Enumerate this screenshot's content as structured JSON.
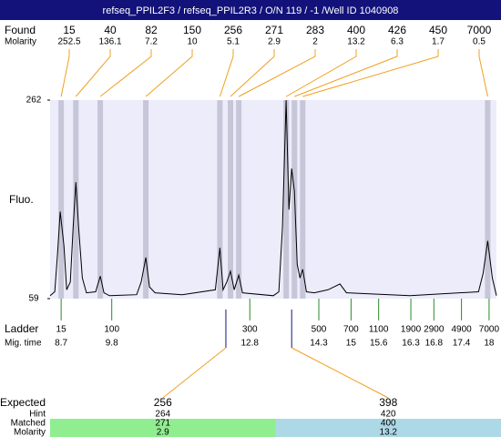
{
  "title": "refseq_PPIL2F3 / refseq_PPIL2R3 / O/N 119 / -1 /Well ID 1040908",
  "labels": {
    "found": "Found",
    "found_molarity": "Molarity",
    "fluo": "Fluo.",
    "ladder": "Ladder",
    "mig_time": "Mig. time",
    "expected": "Expected",
    "hint": "Hint",
    "matched": "Matched",
    "molarity": "Molarity"
  },
  "chart_data": {
    "type": "electropherogram",
    "ylim": [
      59,
      262
    ],
    "yticks": [
      59,
      262
    ],
    "xlim": [
      8.46,
      18.16
    ],
    "trace": {
      "x": [
        8.46,
        8.56,
        8.62,
        8.68,
        8.76,
        8.82,
        8.9,
        8.96,
        9.02,
        9.08,
        9.16,
        9.25,
        9.45,
        9.55,
        9.63,
        9.75,
        10.34,
        10.44,
        10.54,
        10.62,
        10.74,
        11.33,
        12.05,
        12.15,
        12.22,
        12.3,
        12.38,
        12.46,
        12.56,
        12.64,
        13.31,
        13.43,
        13.51,
        13.59,
        13.65,
        13.71,
        13.77,
        13.83,
        13.89,
        13.95,
        14.03,
        14.2,
        14.5,
        14.76,
        14.9,
        16.28,
        17.77,
        17.87,
        17.97,
        18.07,
        18.16
      ],
      "values": [
        62,
        66,
        104,
        148,
        113,
        68,
        76,
        132,
        178,
        132,
        80,
        65,
        66,
        82,
        65,
        62,
        63,
        76,
        101,
        71,
        65,
        63,
        68,
        111,
        68,
        76,
        87,
        68,
        83,
        65,
        62,
        66,
        132,
        262,
        150,
        192,
        169,
        94,
        80,
        89,
        66,
        65,
        68,
        74,
        65,
        62,
        66,
        85,
        118,
        80,
        62
      ]
    },
    "found": {
      "sizes": [
        15,
        40,
        82,
        150,
        256,
        271,
        283,
        400,
        426,
        450,
        7000
      ],
      "molarity": [
        252.5,
        136.1,
        7.2,
        10,
        5.1,
        2.9,
        2,
        13.2,
        6.3,
        1.7,
        0.5
      ],
      "mig_time": [
        8.7,
        9.02,
        9.55,
        10.54,
        12.15,
        12.38,
        12.56,
        13.59,
        13.77,
        13.95,
        17.97
      ]
    },
    "ladder": {
      "sizes": [
        15,
        100,
        300,
        500,
        700,
        1100,
        1900,
        2900,
        4900,
        7000
      ],
      "mig_time": [
        8.7,
        9.8,
        12.8,
        14.3,
        15,
        15.6,
        16.3,
        16.8,
        17.4,
        18
      ]
    },
    "expected": [
      {
        "value": 256,
        "hint": 264,
        "matched": 271,
        "molarity": 2.9,
        "mig_time": 12.28,
        "color": "#90ee90"
      },
      {
        "value": 398,
        "hint": 420,
        "matched": 400,
        "molarity": 13.2,
        "mig_time": 13.71,
        "color": "#add8e6"
      }
    ]
  }
}
